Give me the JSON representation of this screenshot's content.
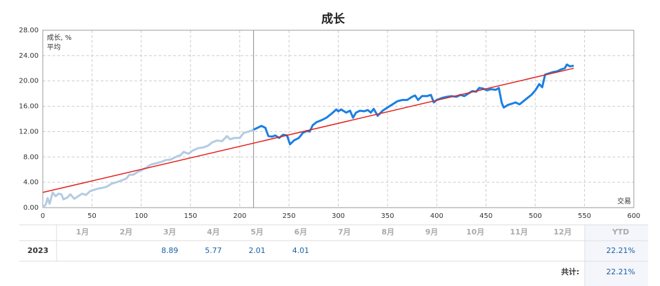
{
  "chart_data": {
    "type": "line",
    "title": "成长",
    "x_label": "交易",
    "xlim": [
      0,
      600
    ],
    "xticks": [
      0,
      50,
      100,
      150,
      200,
      250,
      300,
      350,
      400,
      450,
      500,
      550,
      600
    ],
    "ylim": [
      0,
      28
    ],
    "yticks": [
      {
        "value": 0,
        "label": "0.00"
      },
      {
        "value": 4,
        "label": "4.00"
      },
      {
        "value": 8,
        "label": "8.00"
      },
      {
        "value": 12,
        "label": "12.00"
      },
      {
        "value": 16,
        "label": "16.00"
      },
      {
        "value": 20,
        "label": "20.00"
      },
      {
        "value": 24,
        "label": "24.00"
      },
      {
        "value": 28,
        "label": "28.00"
      }
    ],
    "grid": true,
    "legend": "top-left",
    "marker_x": 214,
    "faded_color": "#b3cbe3",
    "series": [
      {
        "name": "成长, %",
        "color": "#1a7fe3",
        "x": [
          0,
          3,
          5,
          7,
          10,
          13,
          16,
          19,
          21,
          25,
          28,
          32,
          36,
          40,
          44,
          48,
          52,
          56,
          60,
          65,
          70,
          75,
          80,
          85,
          88,
          92,
          96,
          100,
          105,
          110,
          115,
          120,
          125,
          130,
          135,
          140,
          143,
          148,
          152,
          158,
          163,
          168,
          172,
          177,
          182,
          187,
          190,
          195,
          200,
          204,
          209,
          214,
          218,
          222,
          226,
          229,
          233,
          236,
          240,
          244,
          248,
          251,
          255,
          260,
          264,
          268,
          271,
          274,
          278,
          283,
          288,
          293,
          298,
          300,
          303,
          308,
          312,
          315,
          318,
          322,
          326,
          330,
          333,
          336,
          340,
          345,
          350,
          355,
          360,
          365,
          370,
          375,
          378,
          381,
          385,
          390,
          394,
          397,
          400,
          405,
          410,
          415,
          420,
          424,
          428,
          432,
          436,
          440,
          443,
          447,
          451,
          455,
          460,
          463,
          466,
          468,
          472,
          476,
          480,
          484,
          488,
          492,
          496,
          500,
          504,
          507,
          510,
          514,
          518,
          522,
          526,
          530,
          532,
          535,
          539
        ],
        "values": [
          0,
          0.5,
          1.5,
          0.6,
          2.4,
          1.8,
          2.2,
          2.1,
          1.3,
          1.6,
          2.1,
          1.4,
          1.8,
          2.2,
          2.0,
          2.6,
          2.8,
          3.0,
          3.1,
          3.3,
          3.8,
          4.0,
          4.3,
          4.6,
          5.2,
          5.2,
          5.6,
          5.9,
          6.3,
          6.8,
          7.0,
          7.2,
          7.5,
          7.6,
          8.0,
          8.3,
          8.8,
          8.5,
          9.0,
          9.4,
          9.5,
          9.8,
          10.3,
          10.6,
          10.5,
          11.3,
          10.8,
          11.0,
          11.0,
          11.8,
          12.0,
          12.3,
          12.6,
          12.9,
          12.6,
          11.3,
          11.2,
          11.4,
          11.0,
          11.5,
          11.4,
          10.0,
          10.6,
          11.0,
          11.8,
          12.1,
          12.0,
          13.0,
          13.5,
          13.8,
          14.2,
          14.8,
          15.5,
          15.2,
          15.5,
          15.0,
          15.3,
          14.2,
          15.0,
          15.3,
          15.2,
          15.4,
          15.0,
          15.6,
          14.5,
          15.3,
          15.8,
          16.3,
          16.8,
          17.0,
          17.0,
          17.5,
          17.7,
          17.0,
          17.6,
          17.6,
          17.8,
          16.6,
          17.0,
          17.3,
          17.5,
          17.6,
          17.5,
          17.8,
          17.6,
          18.0,
          18.4,
          18.3,
          18.9,
          18.8,
          18.5,
          18.7,
          18.6,
          18.9,
          16.5,
          15.8,
          16.2,
          16.4,
          16.6,
          16.3,
          16.8,
          17.3,
          17.8,
          18.5,
          19.5,
          19.0,
          21.0,
          21.2,
          21.4,
          21.5,
          21.8,
          22.0,
          22.6,
          22.3,
          22.4
        ]
      },
      {
        "name": "平均",
        "color": "#e3201c",
        "x": [
          0,
          539
        ],
        "values": [
          2.4,
          22.0
        ]
      }
    ]
  },
  "table": {
    "header": [
      "1月",
      "2月",
      "3月",
      "4月",
      "5月",
      "6月",
      "7月",
      "8月",
      "9月",
      "10月",
      "11月",
      "12月",
      "YTD"
    ],
    "rows": [
      {
        "year": "2023",
        "values": [
          null,
          null,
          8.89,
          5.77,
          2.01,
          4.01,
          null,
          null,
          null,
          null,
          null,
          null,
          "22.21%"
        ]
      }
    ],
    "total_label": "共计:",
    "total": "22.21%"
  }
}
